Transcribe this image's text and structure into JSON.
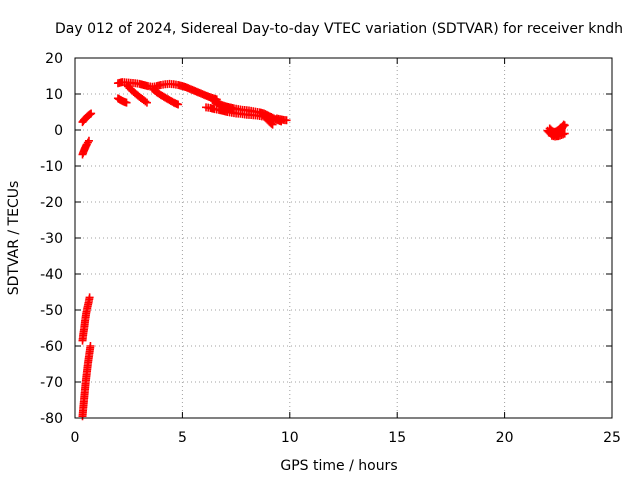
{
  "chart_data": {
    "type": "scatter",
    "title": "Day 012 of 2024, Sidereal Day-to-day VTEC variation (SDTVAR) for receiver kndh",
    "xlabel": "GPS time / hours",
    "ylabel": "SDTVAR / TECUs",
    "xlim": [
      0,
      25
    ],
    "ylim": [
      -80,
      20
    ],
    "xticks": [
      0,
      5,
      10,
      15,
      20,
      25
    ],
    "yticks": [
      -80,
      -70,
      -60,
      -50,
      -40,
      -30,
      -20,
      -10,
      0,
      10,
      20
    ],
    "grid": true,
    "marker": "plus",
    "color": "#ff0000",
    "series": [
      {
        "name": "SDTVAR",
        "segments": [
          [
            [
              0.35,
              -79.5
            ],
            [
              0.38,
              -77.5
            ],
            [
              0.42,
              -75
            ],
            [
              0.46,
              -72.5
            ],
            [
              0.5,
              -70
            ],
            [
              0.55,
              -67.5
            ],
            [
              0.6,
              -65
            ],
            [
              0.66,
              -62.5
            ],
            [
              0.72,
              -60
            ]
          ],
          [
            [
              0.35,
              -58.5
            ],
            [
              0.39,
              -56.5
            ],
            [
              0.43,
              -55
            ],
            [
              0.47,
              -53
            ],
            [
              0.52,
              -51
            ],
            [
              0.57,
              -49.5
            ],
            [
              0.63,
              -48
            ],
            [
              0.68,
              -46.5
            ]
          ],
          [
            [
              0.35,
              -6.8
            ],
            [
              0.4,
              -6
            ],
            [
              0.45,
              -5.3
            ],
            [
              0.5,
              -4.6
            ],
            [
              0.55,
              -4
            ],
            [
              0.6,
              -3.5
            ],
            [
              0.65,
              -3
            ]
          ],
          [
            [
              0.35,
              2.2
            ],
            [
              0.42,
              2.8
            ],
            [
              0.5,
              3.3
            ],
            [
              0.58,
              3.8
            ],
            [
              0.66,
              4.2
            ],
            [
              0.75,
              4.6
            ]
          ],
          [
            [
              2.0,
              8.8
            ],
            [
              2.1,
              8.4
            ],
            [
              2.2,
              8.1
            ],
            [
              2.3,
              7.8
            ],
            [
              2.4,
              7.6
            ]
          ],
          [
            [
              2.0,
              13.0
            ],
            [
              2.2,
              13.3
            ],
            [
              2.4,
              13.2
            ],
            [
              2.6,
              13.1
            ],
            [
              2.8,
              13.0
            ],
            [
              3.0,
              12.8
            ],
            [
              3.2,
              12.5
            ],
            [
              3.4,
              12.2
            ],
            [
              3.6,
              12.0
            ],
            [
              3.8,
              12.2
            ],
            [
              4.0,
              12.5
            ],
            [
              4.2,
              12.7
            ],
            [
              4.4,
              12.8
            ],
            [
              4.6,
              12.7
            ],
            [
              4.8,
              12.5
            ],
            [
              5.0,
              12.2
            ],
            [
              5.2,
              11.8
            ],
            [
              5.4,
              11.3
            ],
            [
              5.6,
              10.8
            ],
            [
              5.8,
              10.3
            ],
            [
              6.0,
              9.8
            ],
            [
              6.2,
              9.3
            ],
            [
              6.4,
              8.9
            ],
            [
              6.6,
              8.5
            ]
          ],
          [
            [
              2.4,
              12.5
            ],
            [
              2.6,
              11.3
            ],
            [
              2.8,
              10.2
            ],
            [
              3.0,
              9.2
            ],
            [
              3.2,
              8.3
            ],
            [
              3.35,
              7.6
            ]
          ],
          [
            [
              3.6,
              11.5
            ],
            [
              3.8,
              10.5
            ],
            [
              4.0,
              9.7
            ],
            [
              4.2,
              9.0
            ],
            [
              4.4,
              8.3
            ],
            [
              4.6,
              7.6
            ],
            [
              4.8,
              7.1
            ]
          ],
          [
            [
              6.1,
              6.3
            ],
            [
              6.3,
              6.1
            ],
            [
              6.5,
              5.8
            ],
            [
              6.7,
              5.6
            ],
            [
              6.9,
              5.3
            ],
            [
              7.1,
              5.0
            ],
            [
              7.3,
              4.8
            ],
            [
              7.5,
              4.6
            ],
            [
              7.7,
              4.5
            ],
            [
              7.9,
              4.3
            ],
            [
              8.1,
              4.2
            ],
            [
              8.3,
              4.1
            ],
            [
              8.5,
              4.0
            ],
            [
              8.7,
              3.8
            ],
            [
              8.9,
              3.6
            ]
          ],
          [
            [
              6.4,
              8.3
            ],
            [
              6.6,
              7.6
            ],
            [
              6.8,
              7.0
            ],
            [
              7.0,
              6.6
            ],
            [
              7.2,
              6.3
            ],
            [
              7.4,
              6.0
            ],
            [
              7.6,
              5.8
            ],
            [
              7.8,
              5.6
            ],
            [
              8.0,
              5.5
            ],
            [
              8.2,
              5.3
            ],
            [
              8.4,
              5.1
            ],
            [
              8.6,
              4.9
            ],
            [
              8.8,
              4.6
            ],
            [
              9.0,
              4.0
            ],
            [
              9.2,
              3.4
            ],
            [
              9.4,
              2.8
            ],
            [
              9.6,
              2.4
            ]
          ],
          [
            [
              8.9,
              3.3
            ],
            [
              9.0,
              2.6
            ],
            [
              9.1,
              2.0
            ],
            [
              9.2,
              1.5
            ]
          ],
          [
            [
              9.4,
              3.2
            ],
            [
              9.55,
              3.0
            ],
            [
              9.7,
              2.8
            ],
            [
              9.85,
              2.7
            ]
          ],
          [
            [
              22.0,
              -0.2
            ],
            [
              22.1,
              -0.8
            ],
            [
              22.2,
              -1.2
            ],
            [
              22.3,
              -1.4
            ],
            [
              22.4,
              -1.3
            ],
            [
              22.5,
              -1.0
            ],
            [
              22.6,
              -0.5
            ],
            [
              22.65,
              0.1
            ],
            [
              22.7,
              0.8
            ],
            [
              22.75,
              1.5
            ]
          ],
          [
            [
              22.1,
              0.4
            ],
            [
              22.2,
              -0.2
            ],
            [
              22.3,
              -0.6
            ],
            [
              22.4,
              -0.4
            ],
            [
              22.5,
              0.0
            ],
            [
              22.6,
              0.5
            ],
            [
              22.7,
              1.0
            ],
            [
              22.8,
              1.3
            ]
          ],
          [
            [
              22.2,
              -1.6
            ],
            [
              22.35,
              -1.8
            ],
            [
              22.5,
              -1.7
            ],
            [
              22.65,
              -1.4
            ],
            [
              22.8,
              -1.0
            ]
          ]
        ]
      }
    ]
  }
}
